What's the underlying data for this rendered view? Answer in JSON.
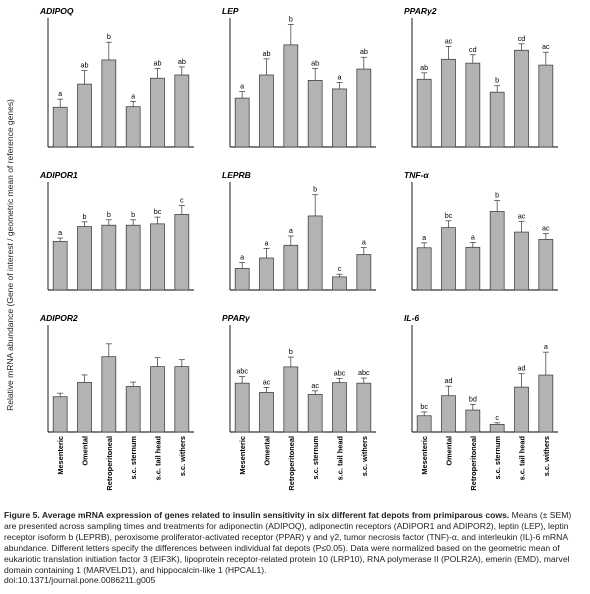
{
  "figure": {
    "ylabel": "Relative mRNA abundance (Gene of interest / geometric mean of reference genes)",
    "categories": [
      "Mesenteric",
      "Omental",
      "Retroperitoneal",
      "s.c. sternum",
      "s.c. tail head",
      "s.c. withers"
    ]
  },
  "chart_data": [
    {
      "type": "bar",
      "title": "ADIPOQ",
      "categories": [
        "Mesenteric",
        "Omental",
        "Retroperitoneal",
        "s.c. sternum",
        "s.c. tail head",
        "s.c. withers"
      ],
      "values": [
        0.74,
        1.17,
        1.62,
        0.75,
        1.28,
        1.34
      ],
      "errors": [
        0.15,
        0.25,
        0.33,
        0.1,
        0.18,
        0.15
      ],
      "labels": [
        "a",
        "ab",
        "b",
        "a",
        "ab",
        "ab"
      ],
      "ylim": [
        0,
        2.4
      ]
    },
    {
      "type": "bar",
      "title": "LEP",
      "categories": [
        "Mesenteric",
        "Omental",
        "Retroperitoneal",
        "s.c. sternum",
        "s.c. tail head",
        "s.c. withers"
      ],
      "values": [
        0.91,
        1.34,
        1.9,
        1.24,
        1.08,
        1.45
      ],
      "errors": [
        0.12,
        0.3,
        0.38,
        0.22,
        0.12,
        0.22
      ],
      "labels": [
        "a",
        "ab",
        "b",
        "ab",
        "a",
        "ab"
      ],
      "ylim": [
        0,
        2.4
      ]
    },
    {
      "type": "bar",
      "title": "PPARγ2",
      "categories": [
        "Mesenteric",
        "Omental",
        "Retroperitoneal",
        "s.c. sternum",
        "s.c. tail head",
        "s.c. withers"
      ],
      "values": [
        1.05,
        1.36,
        1.3,
        0.85,
        1.5,
        1.27
      ],
      "errors": [
        0.1,
        0.2,
        0.13,
        0.1,
        0.1,
        0.2
      ],
      "labels": [
        "ab",
        "ac",
        "cd",
        "b",
        "cd",
        "ac"
      ],
      "ylim": [
        0,
        2.0
      ]
    },
    {
      "type": "bar",
      "title": "ADIPOR1",
      "categories": [
        "Mesenteric",
        "Omental",
        "Retroperitoneal",
        "s.c. sternum",
        "s.c. tail head",
        "s.c. withers"
      ],
      "values": [
        0.72,
        0.94,
        0.96,
        0.96,
        0.98,
        1.12
      ],
      "errors": [
        0.05,
        0.07,
        0.08,
        0.08,
        0.1,
        0.13
      ],
      "labels": [
        "a",
        "b",
        "b",
        "b",
        "bc",
        "c"
      ],
      "ylim": [
        0,
        1.6
      ]
    },
    {
      "type": "bar",
      "title": "LEPRB",
      "categories": [
        "Mesenteric",
        "Omental",
        "Retroperitoneal",
        "s.c. sternum",
        "s.c. tail head",
        "s.c. withers"
      ],
      "values": [
        0.56,
        0.83,
        1.16,
        1.92,
        0.34,
        0.92
      ],
      "errors": [
        0.15,
        0.25,
        0.24,
        0.55,
        0.07,
        0.18
      ],
      "labels": [
        "a",
        "a",
        "a",
        "b",
        "c",
        "a"
      ],
      "ylim": [
        0,
        2.8
      ]
    },
    {
      "type": "bar",
      "title": "TNF-α",
      "categories": [
        "Mesenteric",
        "Omental",
        "Retroperitoneal",
        "s.c. sternum",
        "s.c. tail head",
        "s.c. withers"
      ],
      "values": [
        0.86,
        1.27,
        0.87,
        1.6,
        1.18,
        1.03
      ],
      "errors": [
        0.1,
        0.14,
        0.1,
        0.22,
        0.22,
        0.12
      ],
      "labels": [
        "a",
        "bc",
        "a",
        "b",
        "ac",
        "ac"
      ],
      "ylim": [
        0,
        2.2
      ]
    },
    {
      "type": "bar",
      "title": "ADIPOR2",
      "categories": [
        "Mesenteric",
        "Omental",
        "Retroperitoneal",
        "s.c. sternum",
        "s.c. tail head",
        "s.c. withers"
      ],
      "values": [
        1.78,
        2.5,
        3.8,
        2.3,
        3.3,
        3.3
      ],
      "errors": [
        0.18,
        0.38,
        0.65,
        0.22,
        0.45,
        0.35
      ],
      "labels": [
        "",
        "",
        "",
        "",
        "",
        ""
      ],
      "ylim": [
        0,
        5.4
      ]
    },
    {
      "type": "bar",
      "title": "PPARγ",
      "categories": [
        "Mesenteric",
        "Omental",
        "Retroperitoneal",
        "s.c. sternum",
        "s.c. tail head",
        "s.c. withers"
      ],
      "values": [
        2.1,
        1.7,
        2.8,
        1.62,
        2.12,
        2.1
      ],
      "errors": [
        0.28,
        0.22,
        0.42,
        0.15,
        0.18,
        0.22
      ],
      "labels": [
        "abc",
        "ac",
        "b",
        "ac",
        "abc",
        "abc"
      ],
      "ylim": [
        0,
        4.6
      ]
    },
    {
      "type": "bar",
      "title": "IL-6",
      "categories": [
        "Mesenteric",
        "Omental",
        "Retroperitoneal",
        "s.c. sternum",
        "s.c. tail head",
        "s.c. withers"
      ],
      "values": [
        0.85,
        1.9,
        1.15,
        0.4,
        2.35,
        2.98
      ],
      "errors": [
        0.2,
        0.5,
        0.3,
        0.08,
        0.7,
        1.2
      ],
      "labels": [
        "bc",
        "ad",
        "bd",
        "c",
        "ad",
        "a"
      ],
      "ylim": [
        0,
        5.6
      ]
    }
  ],
  "caption": {
    "bold": "Figure 5. Average mRNA expression of genes related to insulin sensitivity in six different fat depots from primiparous cows.",
    "body": " Means (± SEM) are presented across sampling times and treatments for adiponectin (ADIPOQ), adiponectin receptors (ADIPOR1 and ADIPOR2), leptin (LEP), leptin receptor isoform b (LEPRB), peroxisome proliferator-activated receptor (PPAR) γ and γ2, tumor necrosis factor (TNF)-α, and interleukin (IL)-6 mRNA abundance. Different letters specify the differences between individual fat depots (P≤0.05). Data were normalized based on the geometric mean of eukariotic translation initiation factor 3 (EIF3K), lipoprotein receptor-related protein 10 (LRP10), RNA polymerase II (POLR2A), emerin (EMD), marvel domain containing 1 (MARVELD1), and hippocalcin-like 1 (HPCAL1).",
    "doi": "doi:10.1371/journal.pone.0086211.g005"
  }
}
